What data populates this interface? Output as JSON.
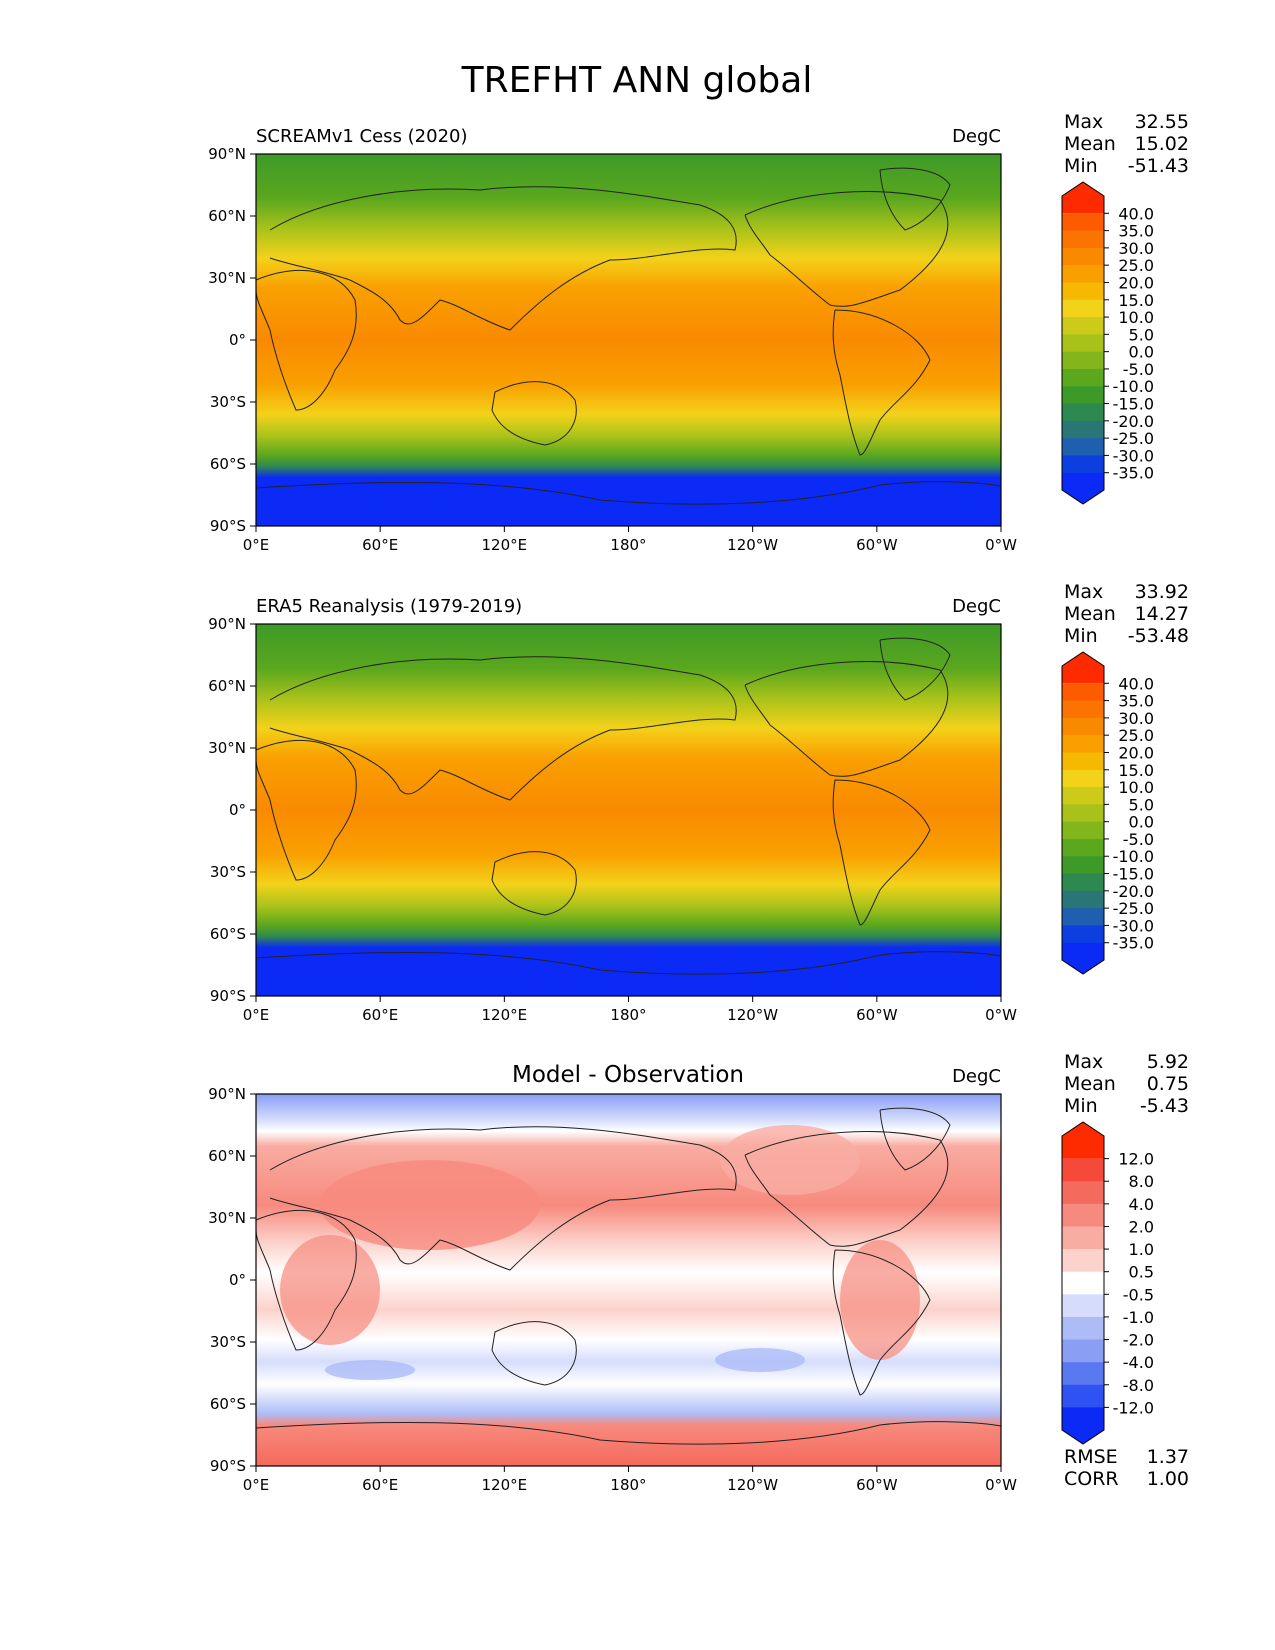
{
  "title": "TREFHT ANN global",
  "chart_data": [
    {
      "type": "heatmap",
      "title": "SCREAMv1 Cess (2020)",
      "units": "DegC",
      "xticks": [
        "0°E",
        "60°E",
        "120°E",
        "180°",
        "120°W",
        "60°W",
        "0°W"
      ],
      "yticks": [
        "90°N",
        "60°N",
        "30°N",
        "0°",
        "30°S",
        "60°S",
        "90°S"
      ],
      "xlim": [
        0,
        360
      ],
      "ylim": [
        -90,
        90
      ],
      "stats": [
        {
          "label": "Max",
          "value": "32.55"
        },
        {
          "label": "Mean",
          "value": "15.02"
        },
        {
          "label": "Min",
          "value": "-51.43"
        }
      ],
      "colorbar": {
        "levels": [
          "40.0",
          "35.0",
          "30.0",
          "25.0",
          "20.0",
          "15.0",
          "10.0",
          "5.0",
          "0.0",
          "-5.0",
          "-10.0",
          "-15.0",
          "-20.0",
          "-25.0",
          "-30.0",
          "-35.0"
        ],
        "colors": [
          "#fe2a00",
          "#fd5b00",
          "#fb7300",
          "#f98a00",
          "#f9a000",
          "#f6b800",
          "#f3d21a",
          "#cccb1a",
          "#a8c21a",
          "#82b61c",
          "#5ba71e",
          "#3d9a28",
          "#2e8950",
          "#2a7676",
          "#1e5fb0",
          "#0d3fe0",
          "#0c2af5"
        ]
      }
    },
    {
      "type": "heatmap",
      "title": "ERA5 Reanalysis (1979-2019)",
      "units": "DegC",
      "xticks": [
        "0°E",
        "60°E",
        "120°E",
        "180°",
        "120°W",
        "60°W",
        "0°W"
      ],
      "yticks": [
        "90°N",
        "60°N",
        "30°N",
        "0°",
        "30°S",
        "60°S",
        "90°S"
      ],
      "xlim": [
        0,
        360
      ],
      "ylim": [
        -90,
        90
      ],
      "stats": [
        {
          "label": "Max",
          "value": "33.92"
        },
        {
          "label": "Mean",
          "value": "14.27"
        },
        {
          "label": "Min",
          "value": "-53.48"
        }
      ],
      "colorbar": {
        "levels": [
          "40.0",
          "35.0",
          "30.0",
          "25.0",
          "20.0",
          "15.0",
          "10.0",
          "5.0",
          "0.0",
          "-5.0",
          "-10.0",
          "-15.0",
          "-20.0",
          "-25.0",
          "-30.0",
          "-35.0"
        ],
        "colors": [
          "#fe2a00",
          "#fd5b00",
          "#fb7300",
          "#f98a00",
          "#f9a000",
          "#f6b800",
          "#f3d21a",
          "#cccb1a",
          "#a8c21a",
          "#82b61c",
          "#5ba71e",
          "#3d9a28",
          "#2e8950",
          "#2a7676",
          "#1e5fb0",
          "#0d3fe0",
          "#0c2af5"
        ]
      }
    },
    {
      "type": "heatmap",
      "title": "Model - Observation",
      "units": "DegC",
      "xticks": [
        "0°E",
        "60°E",
        "120°E",
        "180°",
        "120°W",
        "60°W",
        "0°W"
      ],
      "yticks": [
        "90°N",
        "60°N",
        "30°N",
        "0°",
        "30°S",
        "60°S",
        "90°S"
      ],
      "xlim": [
        0,
        360
      ],
      "ylim": [
        -90,
        90
      ],
      "stats": [
        {
          "label": "Max",
          "value": "5.92"
        },
        {
          "label": "Mean",
          "value": "0.75"
        },
        {
          "label": "Min",
          "value": "-5.43"
        }
      ],
      "colorbar": {
        "levels": [
          "12.0",
          "8.0",
          "4.0",
          "2.0",
          "1.0",
          "0.5",
          "-0.5",
          "-1.0",
          "-2.0",
          "-4.0",
          "-8.0",
          "-12.0"
        ],
        "colors": [
          "#fe2a00",
          "#f54a3a",
          "#f46a5c",
          "#f78a7e",
          "#f9aca2",
          "#fcd2cc",
          "#ffffff",
          "#d6ddfc",
          "#adbcf7",
          "#8a9ef4",
          "#5a78f0",
          "#2f52f2",
          "#0c2af5"
        ]
      },
      "extra_stats": [
        {
          "label": "RMSE",
          "value": "1.37"
        },
        {
          "label": "CORR",
          "value": "1.00"
        }
      ]
    }
  ]
}
